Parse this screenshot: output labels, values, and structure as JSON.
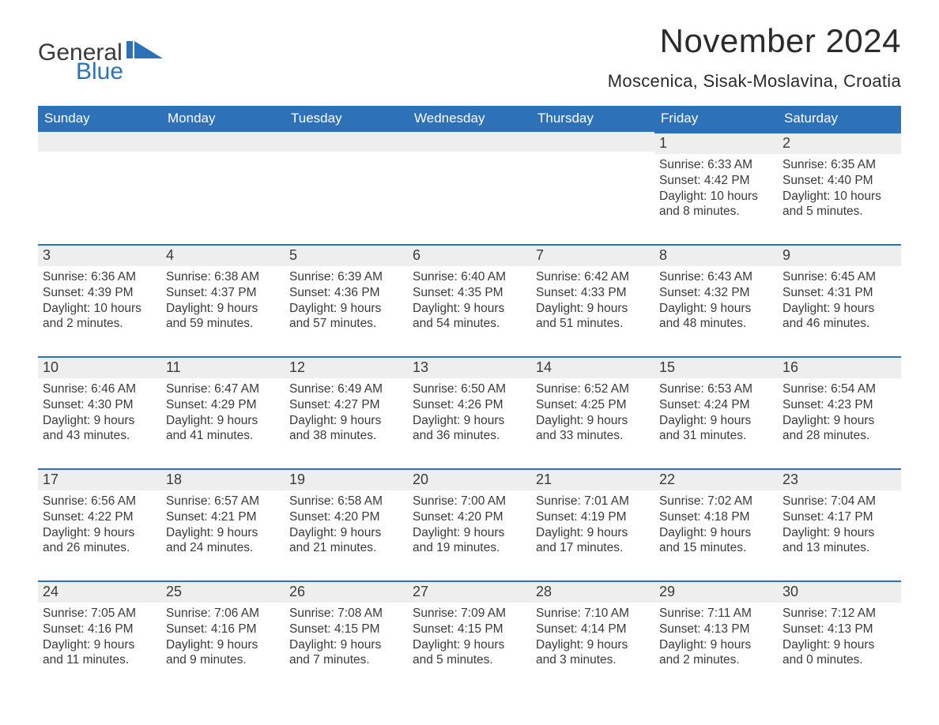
{
  "brand": {
    "general": "General",
    "blue": "Blue",
    "accent_color": "#2d72b8"
  },
  "title": "November 2024",
  "location": "Moscenica, Sisak-Moslavina, Croatia",
  "colors": {
    "header_bg": "#2d72b8",
    "header_text": "#ffffff",
    "daynum_bg": "#eeeeee",
    "day_border": "#2d72b8",
    "text": "#3a3a3a",
    "page_bg": "#ffffff"
  },
  "typography": {
    "title_fontsize": 42,
    "location_fontsize": 22,
    "dow_fontsize": 17,
    "daynum_fontsize": 18,
    "body_fontsize": 15.5
  },
  "days_of_week": [
    "Sunday",
    "Monday",
    "Tuesday",
    "Wednesday",
    "Thursday",
    "Friday",
    "Saturday"
  ],
  "weeks": [
    [
      null,
      null,
      null,
      null,
      null,
      {
        "n": 1,
        "sunrise": "Sunrise: 6:33 AM",
        "sunset": "Sunset: 4:42 PM",
        "daylight": "Daylight: 10 hours and 8 minutes."
      },
      {
        "n": 2,
        "sunrise": "Sunrise: 6:35 AM",
        "sunset": "Sunset: 4:40 PM",
        "daylight": "Daylight: 10 hours and 5 minutes."
      }
    ],
    [
      {
        "n": 3,
        "sunrise": "Sunrise: 6:36 AM",
        "sunset": "Sunset: 4:39 PM",
        "daylight": "Daylight: 10 hours and 2 minutes."
      },
      {
        "n": 4,
        "sunrise": "Sunrise: 6:38 AM",
        "sunset": "Sunset: 4:37 PM",
        "daylight": "Daylight: 9 hours and 59 minutes."
      },
      {
        "n": 5,
        "sunrise": "Sunrise: 6:39 AM",
        "sunset": "Sunset: 4:36 PM",
        "daylight": "Daylight: 9 hours and 57 minutes."
      },
      {
        "n": 6,
        "sunrise": "Sunrise: 6:40 AM",
        "sunset": "Sunset: 4:35 PM",
        "daylight": "Daylight: 9 hours and 54 minutes."
      },
      {
        "n": 7,
        "sunrise": "Sunrise: 6:42 AM",
        "sunset": "Sunset: 4:33 PM",
        "daylight": "Daylight: 9 hours and 51 minutes."
      },
      {
        "n": 8,
        "sunrise": "Sunrise: 6:43 AM",
        "sunset": "Sunset: 4:32 PM",
        "daylight": "Daylight: 9 hours and 48 minutes."
      },
      {
        "n": 9,
        "sunrise": "Sunrise: 6:45 AM",
        "sunset": "Sunset: 4:31 PM",
        "daylight": "Daylight: 9 hours and 46 minutes."
      }
    ],
    [
      {
        "n": 10,
        "sunrise": "Sunrise: 6:46 AM",
        "sunset": "Sunset: 4:30 PM",
        "daylight": "Daylight: 9 hours and 43 minutes."
      },
      {
        "n": 11,
        "sunrise": "Sunrise: 6:47 AM",
        "sunset": "Sunset: 4:29 PM",
        "daylight": "Daylight: 9 hours and 41 minutes."
      },
      {
        "n": 12,
        "sunrise": "Sunrise: 6:49 AM",
        "sunset": "Sunset: 4:27 PM",
        "daylight": "Daylight: 9 hours and 38 minutes."
      },
      {
        "n": 13,
        "sunrise": "Sunrise: 6:50 AM",
        "sunset": "Sunset: 4:26 PM",
        "daylight": "Daylight: 9 hours and 36 minutes."
      },
      {
        "n": 14,
        "sunrise": "Sunrise: 6:52 AM",
        "sunset": "Sunset: 4:25 PM",
        "daylight": "Daylight: 9 hours and 33 minutes."
      },
      {
        "n": 15,
        "sunrise": "Sunrise: 6:53 AM",
        "sunset": "Sunset: 4:24 PM",
        "daylight": "Daylight: 9 hours and 31 minutes."
      },
      {
        "n": 16,
        "sunrise": "Sunrise: 6:54 AM",
        "sunset": "Sunset: 4:23 PM",
        "daylight": "Daylight: 9 hours and 28 minutes."
      }
    ],
    [
      {
        "n": 17,
        "sunrise": "Sunrise: 6:56 AM",
        "sunset": "Sunset: 4:22 PM",
        "daylight": "Daylight: 9 hours and 26 minutes."
      },
      {
        "n": 18,
        "sunrise": "Sunrise: 6:57 AM",
        "sunset": "Sunset: 4:21 PM",
        "daylight": "Daylight: 9 hours and 24 minutes."
      },
      {
        "n": 19,
        "sunrise": "Sunrise: 6:58 AM",
        "sunset": "Sunset: 4:20 PM",
        "daylight": "Daylight: 9 hours and 21 minutes."
      },
      {
        "n": 20,
        "sunrise": "Sunrise: 7:00 AM",
        "sunset": "Sunset: 4:20 PM",
        "daylight": "Daylight: 9 hours and 19 minutes."
      },
      {
        "n": 21,
        "sunrise": "Sunrise: 7:01 AM",
        "sunset": "Sunset: 4:19 PM",
        "daylight": "Daylight: 9 hours and 17 minutes."
      },
      {
        "n": 22,
        "sunrise": "Sunrise: 7:02 AM",
        "sunset": "Sunset: 4:18 PM",
        "daylight": "Daylight: 9 hours and 15 minutes."
      },
      {
        "n": 23,
        "sunrise": "Sunrise: 7:04 AM",
        "sunset": "Sunset: 4:17 PM",
        "daylight": "Daylight: 9 hours and 13 minutes."
      }
    ],
    [
      {
        "n": 24,
        "sunrise": "Sunrise: 7:05 AM",
        "sunset": "Sunset: 4:16 PM",
        "daylight": "Daylight: 9 hours and 11 minutes."
      },
      {
        "n": 25,
        "sunrise": "Sunrise: 7:06 AM",
        "sunset": "Sunset: 4:16 PM",
        "daylight": "Daylight: 9 hours and 9 minutes."
      },
      {
        "n": 26,
        "sunrise": "Sunrise: 7:08 AM",
        "sunset": "Sunset: 4:15 PM",
        "daylight": "Daylight: 9 hours and 7 minutes."
      },
      {
        "n": 27,
        "sunrise": "Sunrise: 7:09 AM",
        "sunset": "Sunset: 4:15 PM",
        "daylight": "Daylight: 9 hours and 5 minutes."
      },
      {
        "n": 28,
        "sunrise": "Sunrise: 7:10 AM",
        "sunset": "Sunset: 4:14 PM",
        "daylight": "Daylight: 9 hours and 3 minutes."
      },
      {
        "n": 29,
        "sunrise": "Sunrise: 7:11 AM",
        "sunset": "Sunset: 4:13 PM",
        "daylight": "Daylight: 9 hours and 2 minutes."
      },
      {
        "n": 30,
        "sunrise": "Sunrise: 7:12 AM",
        "sunset": "Sunset: 4:13 PM",
        "daylight": "Daylight: 9 hours and 0 minutes."
      }
    ]
  ]
}
